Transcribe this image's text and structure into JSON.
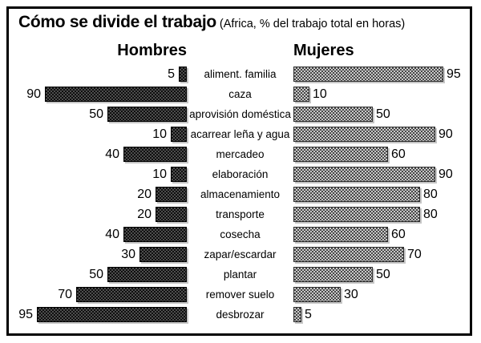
{
  "chart": {
    "title": "Cómo se divide el trabajo",
    "subtitle": "(Africa, % del trabajo total en horas)",
    "left_header": "Hombres",
    "right_header": "Mujeres"
  },
  "chart_data": {
    "type": "bar",
    "orientation": "diverging-horizontal",
    "title": "Cómo se divide el trabajo",
    "subtitle": "(Africa, % del trabajo total en horas)",
    "value_unit": "% del trabajo total en horas",
    "xlim": [
      0,
      100
    ],
    "grid": false,
    "legend_position": "column-headers",
    "categories": [
      "aliment. familia",
      "caza",
      "aprovisión doméstica",
      "acarrear leña y agua",
      "mercadeo",
      "elaboración",
      "almacenamiento",
      "transporte",
      "cosecha",
      "zapar/escardar",
      "plantar",
      "remover suelo",
      "desbrozar"
    ],
    "series": [
      {
        "name": "Hombres",
        "side": "left",
        "values": [
          5,
          90,
          50,
          10,
          40,
          10,
          20,
          20,
          40,
          30,
          50,
          70,
          95
        ]
      },
      {
        "name": "Mujeres",
        "side": "right",
        "values": [
          95,
          10,
          50,
          90,
          60,
          90,
          80,
          80,
          60,
          70,
          50,
          30,
          5
        ]
      }
    ],
    "colors": {
      "men_bar": "#1a1a1a",
      "women_bar": "#8a8a8a",
      "frame_border": "#000000",
      "background": "#ffffff"
    }
  }
}
